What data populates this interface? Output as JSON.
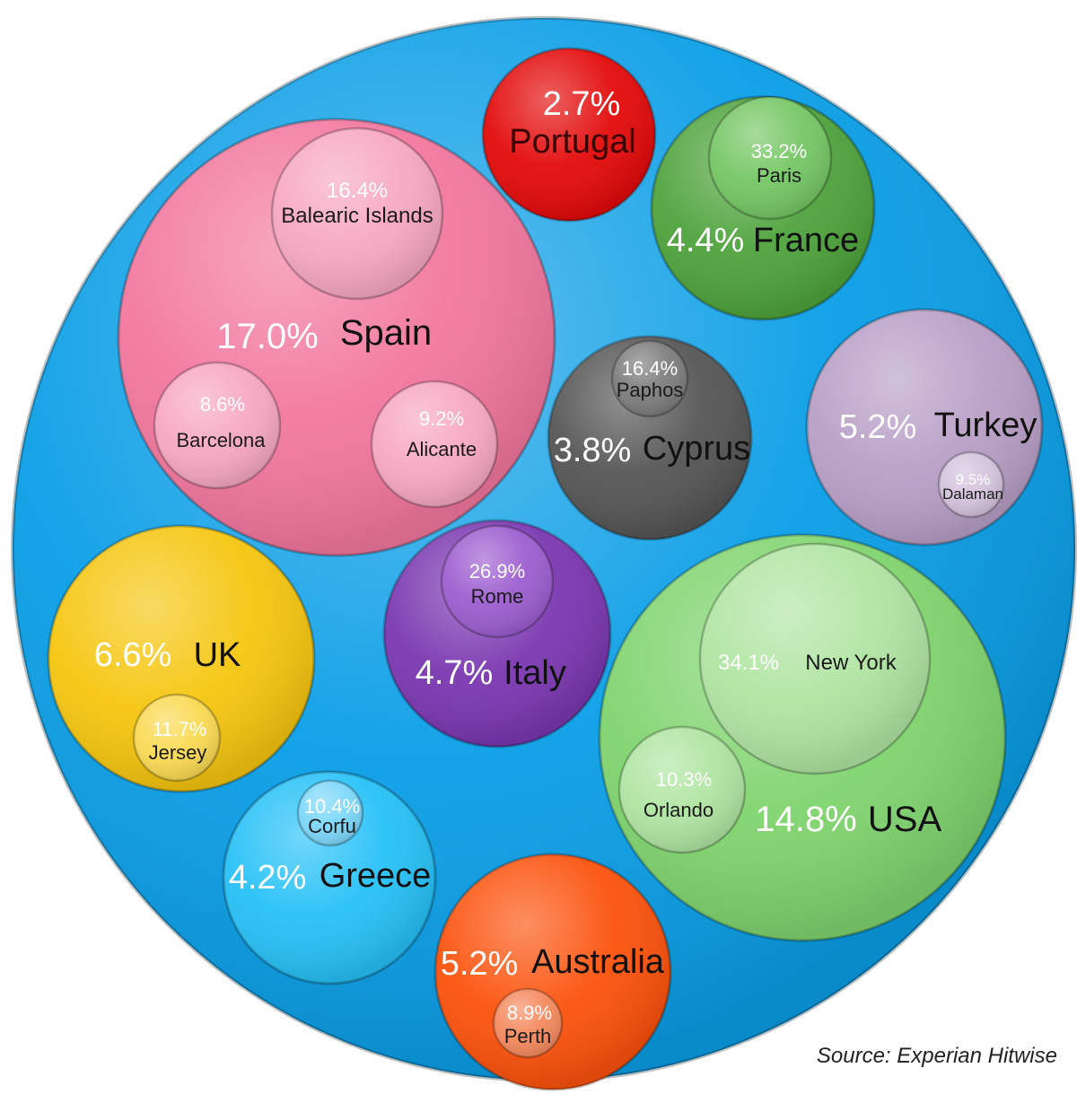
{
  "source": "Source: Experian Hitwise",
  "chart_data": {
    "type": "bubble",
    "outer_color": "#0a9ee6",
    "series": [
      {
        "name": "Spain",
        "value": "17.0%",
        "color": "#f2779e",
        "children": [
          {
            "name": "Balearic  Islands",
            "value": "16.4%",
            "color": "#f7a8c2"
          },
          {
            "name": "Barcelona",
            "value": "8.6%",
            "color": "#f7a8c2"
          },
          {
            "name": "Alicante",
            "value": "9.2%",
            "color": "#f7a8c2"
          }
        ]
      },
      {
        "name": "Portugal",
        "value": "2.7%",
        "color": "#e30a0a",
        "children": []
      },
      {
        "name": "France",
        "value": "4.4%",
        "color": "#4ea33c",
        "children": [
          {
            "name": "Paris",
            "value": "33.2%",
            "color": "#76c765"
          }
        ]
      },
      {
        "name": "Cyprus",
        "value": "3.8%",
        "color": "#555555",
        "children": [
          {
            "name": "Paphos",
            "value": "16.4%",
            "color": "#7d7d7d"
          }
        ]
      },
      {
        "name": "Turkey",
        "value": "5.2%",
        "color": "#b89fc6",
        "children": [
          {
            "name": "Dalaman",
            "value": "9.5%",
            "color": "#d4c3dc"
          }
        ]
      },
      {
        "name": "UK",
        "value": "6.6%",
        "color": "#f5c60f",
        "children": [
          {
            "name": "Jersey",
            "value": "11.7%",
            "color": "#fada53"
          }
        ]
      },
      {
        "name": "Italy",
        "value": "4.7%",
        "color": "#7a37b0",
        "children": [
          {
            "name": "Rome",
            "value": "26.9%",
            "color": "#9d5ed0"
          }
        ]
      },
      {
        "name": "USA",
        "value": "14.8%",
        "color": "#7fd46e",
        "children": [
          {
            "name": "New York",
            "value": "34.1%",
            "color": "#b0e5a2"
          },
          {
            "name": "Orlando",
            "value": "10.3%",
            "color": "#b0e5a2"
          }
        ]
      },
      {
        "name": "Greece",
        "value": "4.2%",
        "color": "#26c1f7",
        "children": [
          {
            "name": "Corfu",
            "value": "10.4%",
            "color": "#7dd8fa"
          }
        ]
      },
      {
        "name": "Australia",
        "value": "5.2%",
        "color": "#fb520c",
        "children": [
          {
            "name": "Perth",
            "value": "8.9%",
            "color": "#f58a5f"
          }
        ]
      }
    ]
  }
}
